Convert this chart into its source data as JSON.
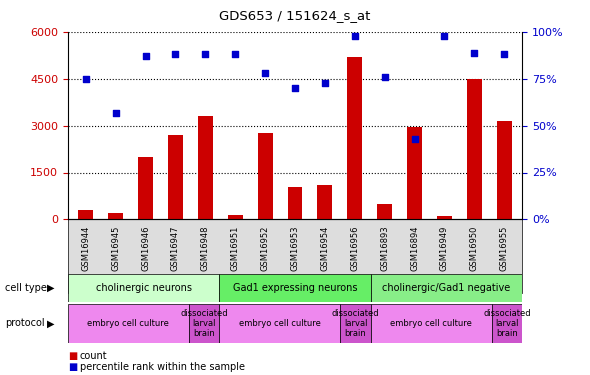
{
  "title": "GDS653 / 151624_s_at",
  "samples": [
    "GSM16944",
    "GSM16945",
    "GSM16946",
    "GSM16947",
    "GSM16948",
    "GSM16951",
    "GSM16952",
    "GSM16953",
    "GSM16954",
    "GSM16956",
    "GSM16893",
    "GSM16894",
    "GSM16949",
    "GSM16950",
    "GSM16955"
  ],
  "counts": [
    300,
    200,
    2000,
    2700,
    3300,
    150,
    2750,
    1050,
    1100,
    5200,
    500,
    2950,
    100,
    4500,
    3150
  ],
  "percentile": [
    75,
    57,
    87,
    88,
    88,
    88,
    78,
    70,
    73,
    98,
    76,
    43,
    98,
    89,
    88
  ],
  "bar_color": "#cc0000",
  "dot_color": "#0000cc",
  "ylim_left": [
    0,
    6000
  ],
  "ylim_right": [
    0,
    100
  ],
  "yticks_left": [
    0,
    1500,
    3000,
    4500,
    6000
  ],
  "yticks_right": [
    0,
    25,
    50,
    75,
    100
  ],
  "cell_type_groups": [
    {
      "label": "cholinergic neurons",
      "start": 0,
      "end": 5,
      "color": "#ccffcc"
    },
    {
      "label": "Gad1 expressing neurons",
      "start": 5,
      "end": 10,
      "color": "#66ee66"
    },
    {
      "label": "cholinergic/Gad1 negative",
      "start": 10,
      "end": 15,
      "color": "#88ee88"
    }
  ],
  "protocol_groups": [
    {
      "label": "embryo cell culture",
      "start": 0,
      "end": 4,
      "color": "#ee88ee"
    },
    {
      "label": "dissociated\nlarval\nbrain",
      "start": 4,
      "end": 5,
      "color": "#cc55cc"
    },
    {
      "label": "embryo cell culture",
      "start": 5,
      "end": 9,
      "color": "#ee88ee"
    },
    {
      "label": "dissociated\nlarval\nbrain",
      "start": 9,
      "end": 10,
      "color": "#cc55cc"
    },
    {
      "label": "embryo cell culture",
      "start": 10,
      "end": 14,
      "color": "#ee88ee"
    },
    {
      "label": "dissociated\nlarval\nbrain",
      "start": 14,
      "end": 15,
      "color": "#cc55cc"
    }
  ],
  "legend_count_color": "#cc0000",
  "legend_dot_color": "#0000cc",
  "bg_color": "#ffffff",
  "tick_label_color_left": "#cc0000",
  "tick_label_color_right": "#0000cc"
}
